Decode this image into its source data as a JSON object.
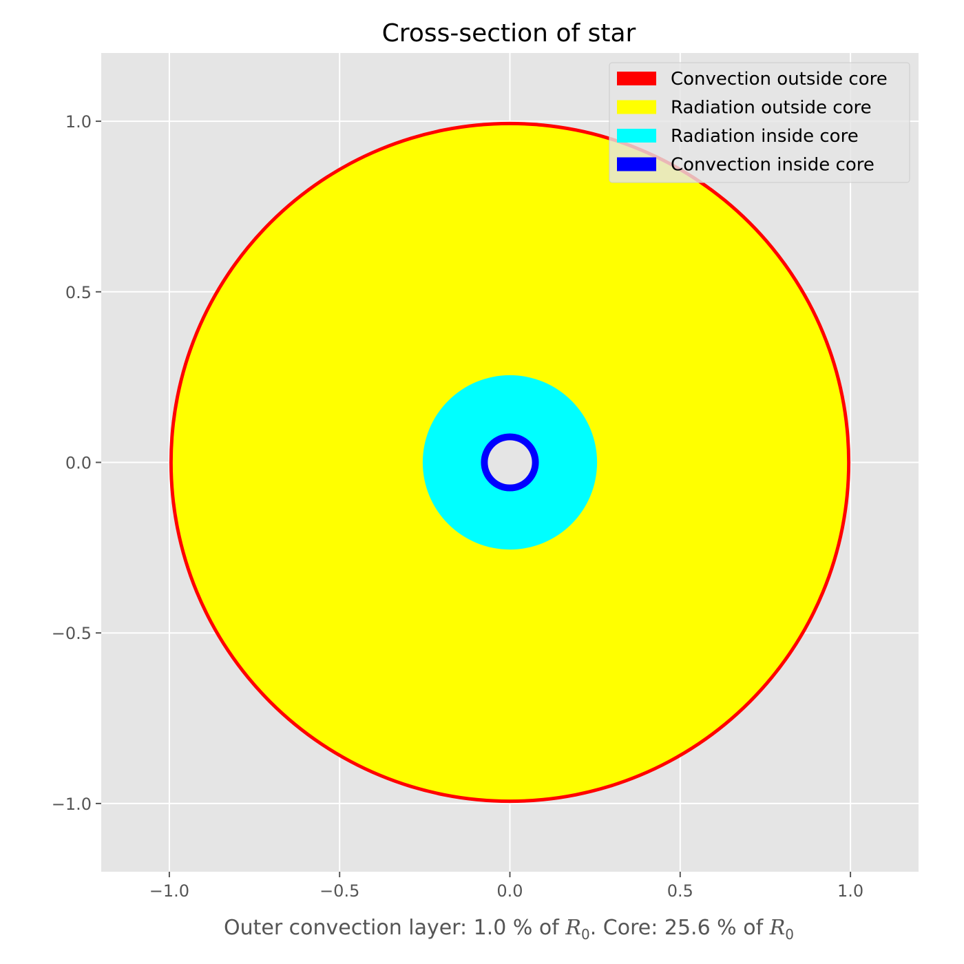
{
  "chart_data": {
    "type": "pie",
    "title": "Cross-section of star",
    "xlabel": {
      "prefix": "Outer convection layer: 1.0 % of ",
      "var1": "R",
      "sub1": "0",
      "middle": ". Core: 25.6 % of ",
      "var2": "R",
      "sub2": "0"
    },
    "xlim": [
      -1.2,
      1.2
    ],
    "ylim": [
      -1.2,
      1.2
    ],
    "xticks": [
      -1.0,
      -0.5,
      0.0,
      0.5,
      1.0
    ],
    "yticks": [
      -1.0,
      -0.5,
      0.0,
      0.5,
      1.0
    ],
    "xtick_labels": [
      "−1.0",
      "−0.5",
      "0.0",
      "0.5",
      "1.0"
    ],
    "ytick_labels": [
      "−1.0",
      "−0.5",
      "0.0",
      "0.5",
      "1.0"
    ],
    "grid": true,
    "legend_position": "top-right",
    "layers": [
      {
        "name": "Convection outside core",
        "color": "#ff0000",
        "outer_radius": 1.0,
        "inner_radius": 0.99
      },
      {
        "name": "Radiation outside core",
        "color": "#ffff00",
        "outer_radius": 0.99,
        "inner_radius": 0.256
      },
      {
        "name": "Radiation inside core",
        "color": "#00ffff",
        "outer_radius": 0.256,
        "inner_radius": 0.085
      },
      {
        "name": "Convection inside core",
        "color": "#0000ff",
        "outer_radius": 0.085,
        "inner_radius": 0.065
      }
    ],
    "center_color": "#e5e5e5",
    "legend_order": [
      "Convection outside core",
      "Radiation outside core",
      "Radiation inside core",
      "Convection inside core"
    ],
    "colors": {
      "background": "#e5e5e5",
      "grid": "#ffffff",
      "tick": "#555555"
    }
  }
}
